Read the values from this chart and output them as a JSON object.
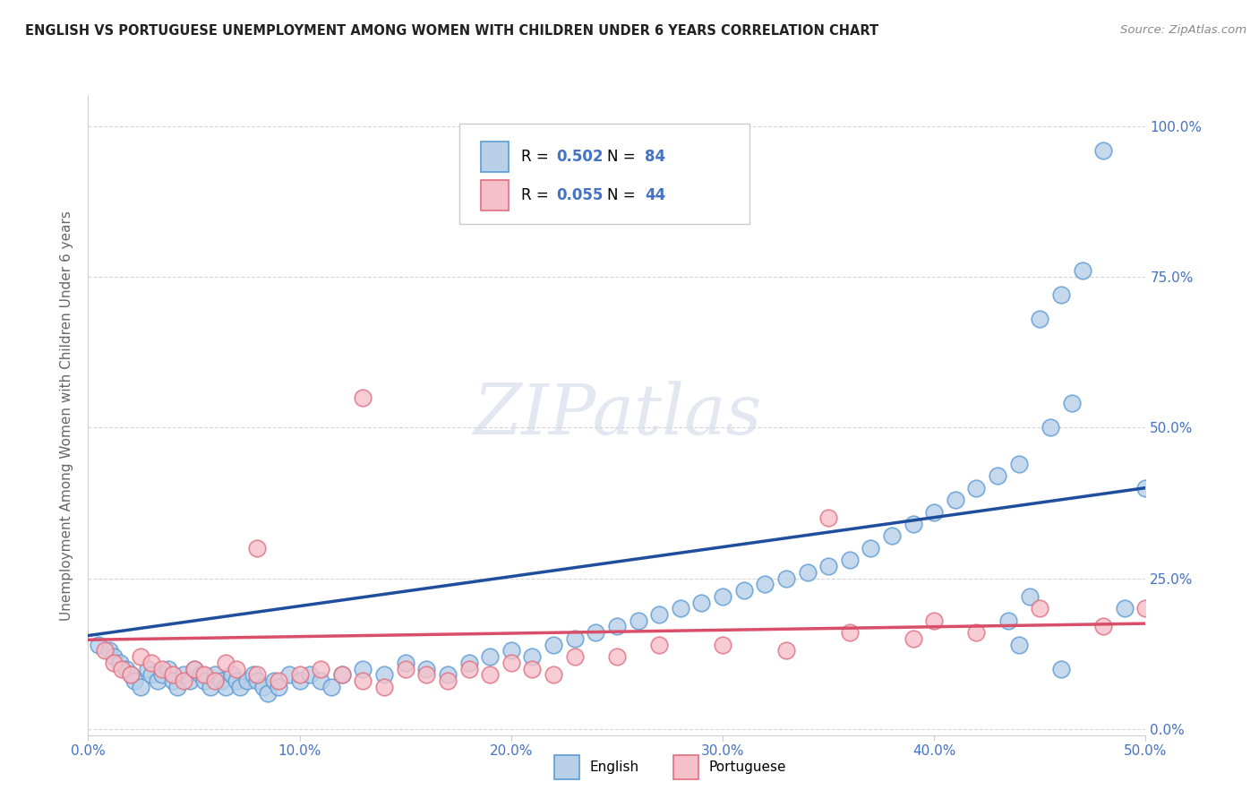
{
  "title": "ENGLISH VS PORTUGUESE UNEMPLOYMENT AMONG WOMEN WITH CHILDREN UNDER 6 YEARS CORRELATION CHART",
  "source": "Source: ZipAtlas.com",
  "ylabel": "Unemployment Among Women with Children Under 6 years",
  "xlim": [
    0.0,
    0.5
  ],
  "ylim": [
    -0.01,
    1.05
  ],
  "xticks": [
    0.0,
    0.1,
    0.2,
    0.3,
    0.4,
    0.5
  ],
  "yticks": [
    0.0,
    0.25,
    0.5,
    0.75,
    1.0
  ],
  "xtick_labels": [
    "0.0%",
    "10.0%",
    "20.0%",
    "30.0%",
    "40.0%",
    "50.0%"
  ],
  "ytick_labels": [
    "0.0%",
    "25.0%",
    "50.0%",
    "75.0%",
    "100.0%"
  ],
  "english_color": "#b8d0e8",
  "english_edge_color": "#5b9bd5",
  "portuguese_color": "#f5c0ca",
  "portuguese_edge_color": "#e07080",
  "english_line_color": "#1f4e9c",
  "portuguese_line_color": "#d94f6a",
  "english_R": 0.502,
  "english_N": 84,
  "portuguese_R": 0.055,
  "portuguese_N": 44,
  "watermark_text": "ZIPatlas",
  "english_x": [
    0.005,
    0.01,
    0.012,
    0.015,
    0.018,
    0.02,
    0.022,
    0.025,
    0.028,
    0.03,
    0.033,
    0.035,
    0.038,
    0.04,
    0.042,
    0.045,
    0.048,
    0.05,
    0.053,
    0.055,
    0.058,
    0.06,
    0.063,
    0.065,
    0.068,
    0.07,
    0.072,
    0.075,
    0.078,
    0.08,
    0.083,
    0.085,
    0.088,
    0.09,
    0.095,
    0.1,
    0.105,
    0.11,
    0.115,
    0.12,
    0.13,
    0.14,
    0.15,
    0.16,
    0.17,
    0.18,
    0.19,
    0.2,
    0.21,
    0.22,
    0.23,
    0.24,
    0.25,
    0.26,
    0.27,
    0.28,
    0.29,
    0.3,
    0.31,
    0.32,
    0.33,
    0.34,
    0.35,
    0.36,
    0.37,
    0.38,
    0.39,
    0.4,
    0.41,
    0.42,
    0.43,
    0.44,
    0.45,
    0.46,
    0.47,
    0.48,
    0.49,
    0.5,
    0.435,
    0.445,
    0.455,
    0.465,
    0.44,
    0.46
  ],
  "english_y": [
    0.14,
    0.13,
    0.12,
    0.11,
    0.1,
    0.09,
    0.08,
    0.07,
    0.1,
    0.09,
    0.08,
    0.09,
    0.1,
    0.08,
    0.07,
    0.09,
    0.08,
    0.1,
    0.09,
    0.08,
    0.07,
    0.09,
    0.08,
    0.07,
    0.09,
    0.08,
    0.07,
    0.08,
    0.09,
    0.08,
    0.07,
    0.06,
    0.08,
    0.07,
    0.09,
    0.08,
    0.09,
    0.08,
    0.07,
    0.09,
    0.1,
    0.09,
    0.11,
    0.1,
    0.09,
    0.11,
    0.12,
    0.13,
    0.12,
    0.14,
    0.15,
    0.16,
    0.17,
    0.18,
    0.19,
    0.2,
    0.21,
    0.22,
    0.23,
    0.24,
    0.25,
    0.26,
    0.27,
    0.28,
    0.3,
    0.32,
    0.34,
    0.36,
    0.38,
    0.4,
    0.42,
    0.44,
    0.68,
    0.72,
    0.76,
    0.96,
    0.2,
    0.4,
    0.18,
    0.22,
    0.5,
    0.54,
    0.14,
    0.1
  ],
  "portuguese_x": [
    0.008,
    0.012,
    0.016,
    0.02,
    0.025,
    0.03,
    0.035,
    0.04,
    0.045,
    0.05,
    0.055,
    0.06,
    0.065,
    0.07,
    0.08,
    0.09,
    0.1,
    0.11,
    0.12,
    0.13,
    0.14,
    0.15,
    0.16,
    0.17,
    0.18,
    0.19,
    0.2,
    0.21,
    0.22,
    0.23,
    0.25,
    0.27,
    0.3,
    0.33,
    0.36,
    0.39,
    0.42,
    0.45,
    0.48,
    0.5,
    0.13,
    0.08,
    0.35,
    0.4
  ],
  "portuguese_y": [
    0.13,
    0.11,
    0.1,
    0.09,
    0.12,
    0.11,
    0.1,
    0.09,
    0.08,
    0.1,
    0.09,
    0.08,
    0.11,
    0.1,
    0.09,
    0.08,
    0.09,
    0.1,
    0.09,
    0.08,
    0.07,
    0.1,
    0.09,
    0.08,
    0.1,
    0.09,
    0.11,
    0.1,
    0.09,
    0.12,
    0.12,
    0.14,
    0.14,
    0.13,
    0.16,
    0.15,
    0.16,
    0.2,
    0.17,
    0.2,
    0.55,
    0.3,
    0.35,
    0.18
  ],
  "english_line_x0": 0.0,
  "english_line_y0": 0.155,
  "english_line_x1": 0.5,
  "english_line_y1": 0.4,
  "portuguese_line_x0": 0.0,
  "portuguese_line_y0": 0.148,
  "portuguese_line_x1": 0.5,
  "portuguese_line_y1": 0.175
}
